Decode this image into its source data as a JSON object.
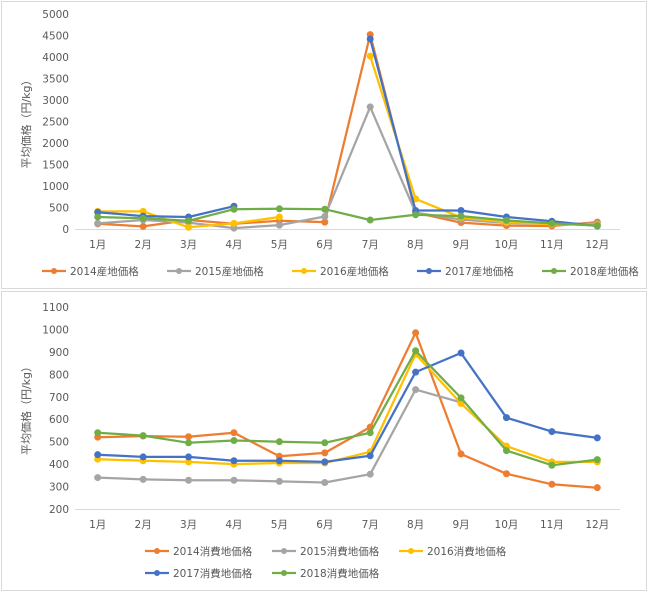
{
  "chart_data": [
    {
      "type": "line",
      "ylabel": "平均価格（円/kg）",
      "categories": [
        "1月",
        "2月",
        "3月",
        "4月",
        "5月",
        "6月",
        "7月",
        "8月",
        "9月",
        "10月",
        "11月",
        "12月"
      ],
      "ylim": [
        0,
        5000
      ],
      "yticks": [
        0,
        500,
        1000,
        1500,
        2000,
        2500,
        3000,
        3500,
        4000,
        4500,
        5000
      ],
      "grid": false,
      "legend_position": "bottom",
      "series": [
        {
          "name": "2014産地価格",
          "color": "#ED7D31",
          "values": [
            120,
            60,
            210,
            120,
            190,
            160,
            4520,
            380,
            150,
            80,
            70,
            160
          ]
        },
        {
          "name": "2015産地価格",
          "color": "#A5A5A5",
          "values": [
            130,
            210,
            150,
            20,
            90,
            290,
            2840,
            380,
            220,
            140,
            120,
            120
          ]
        },
        {
          "name": "2016産地価格",
          "color": "#FFC000",
          "values": [
            410,
            410,
            40,
            130,
            280,
            null,
            4020,
            700,
            270,
            160,
            110,
            100
          ]
        },
        {
          "name": "2017産地価格",
          "color": "#4472C4",
          "values": [
            390,
            300,
            280,
            530,
            null,
            null,
            4420,
            430,
            430,
            280,
            180,
            70
          ]
        },
        {
          "name": "2018産地価格",
          "color": "#70AD47",
          "values": [
            280,
            250,
            190,
            460,
            470,
            460,
            210,
            330,
            300,
            200,
            130,
            80
          ]
        }
      ]
    },
    {
      "type": "line",
      "ylabel": "平均価格（円/kg）",
      "categories": [
        "1月",
        "2月",
        "3月",
        "4月",
        "5月",
        "6月",
        "7月",
        "8月",
        "9月",
        "10月",
        "11月",
        "12月"
      ],
      "ylim": [
        200,
        1100
      ],
      "yticks": [
        200,
        300,
        400,
        500,
        600,
        700,
        800,
        900,
        1000,
        1100
      ],
      "grid": false,
      "legend_position": "bottom",
      "series": [
        {
          "name": "2014消費地価格",
          "color": "#ED7D31",
          "values": [
            520,
            525,
            522,
            540,
            435,
            450,
            565,
            985,
            445,
            357,
            310,
            295
          ]
        },
        {
          "name": "2015消費地価格",
          "color": "#A5A5A5",
          "values": [
            340,
            332,
            328,
            328,
            323,
            318,
            355,
            732,
            675,
            null,
            null,
            null
          ]
        },
        {
          "name": "2016消費地価格",
          "color": "#FFC000",
          "values": [
            422,
            415,
            410,
            400,
            405,
            405,
            455,
            890,
            670,
            480,
            410,
            410
          ]
        },
        {
          "name": "2017消費地価格",
          "color": "#4472C4",
          "values": [
            442,
            432,
            432,
            415,
            415,
            410,
            437,
            810,
            895,
            607,
            545,
            517
          ]
        },
        {
          "name": "2018消費地価格",
          "color": "#70AD47",
          "values": [
            540,
            527,
            495,
            505,
            500,
            495,
            540,
            905,
            695,
            460,
            395,
            420
          ]
        }
      ]
    }
  ]
}
